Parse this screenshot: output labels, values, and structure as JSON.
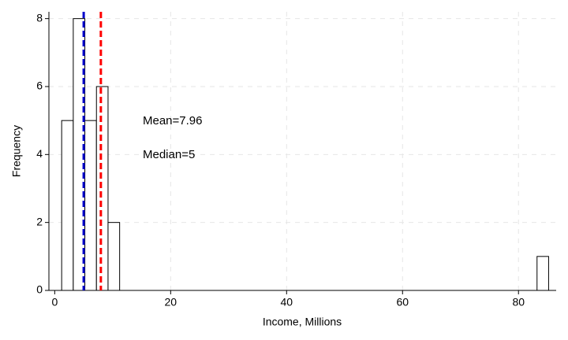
{
  "chart_data": {
    "type": "histogram",
    "x_label": "Income, Millions",
    "y_label": "Frequency",
    "bins": [
      1.2,
      3.2,
      5.2,
      7.2,
      9.2,
      11.2,
      13.2,
      15.2,
      17.2,
      19.2,
      21.2,
      23.2,
      25.2,
      27.2,
      29.2,
      31.2,
      33.2,
      35.2,
      37.2,
      39.2,
      41.2,
      43.2,
      45.2,
      47.2,
      49.2,
      51.2,
      53.2,
      55.2,
      57.2,
      59.2,
      61.2,
      63.2,
      65.2,
      67.2,
      69.2,
      71.2,
      73.2,
      75.2,
      77.2,
      79.2,
      81.2,
      83.2,
      85.2
    ],
    "values": [
      5,
      8,
      5,
      6,
      2,
      0,
      0,
      0,
      0,
      0,
      0,
      0,
      0,
      0,
      0,
      0,
      0,
      0,
      0,
      0,
      0,
      0,
      0,
      0,
      0,
      0,
      0,
      0,
      0,
      0,
      0,
      0,
      0,
      0,
      0,
      0,
      0,
      0,
      0,
      0,
      0,
      1
    ],
    "color": "#ffffff",
    "edge_color": "#000000",
    "mean": 7.96,
    "mean_color": "#ff0000",
    "mean_label": "Mean=7.96",
    "median": 5,
    "median_color": "#0000cc",
    "median_label": "Median=5",
    "xlim": [
      -1,
      86.5
    ],
    "xticks": [
      0,
      20,
      40,
      60,
      80
    ],
    "ylim": [
      0,
      8.2
    ],
    "yticks": [
      0,
      2,
      4,
      6,
      8
    ],
    "grid": true
  }
}
